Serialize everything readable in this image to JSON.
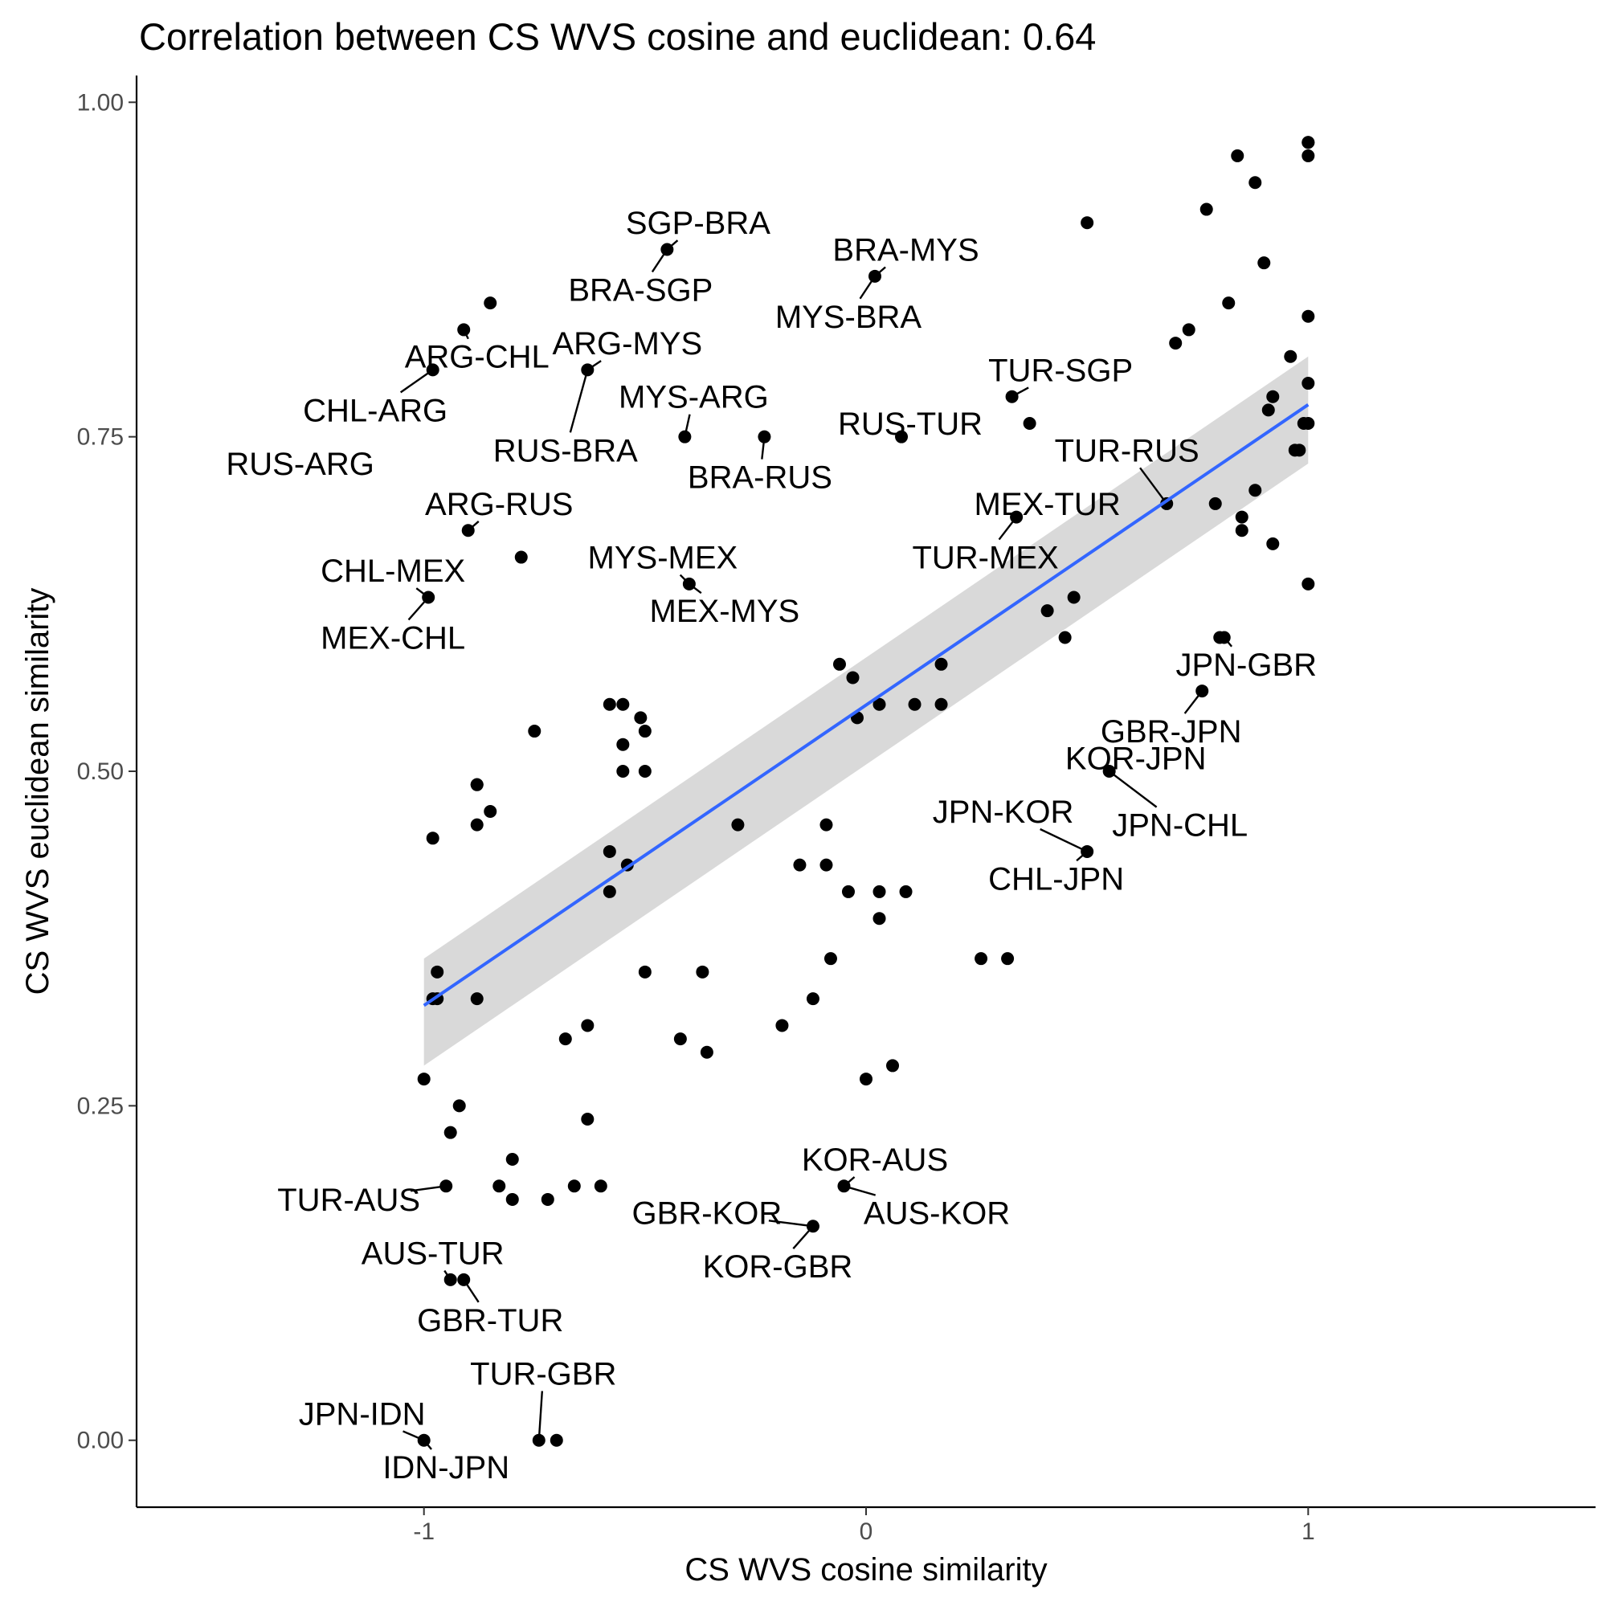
{
  "chart_data": {
    "type": "scatter",
    "title": "Correlation between CS WVS cosine and euclidean: 0.64",
    "xlabel": "CS WVS cosine similarity",
    "ylabel": "CS WVS euclidean similarity",
    "xlim": [
      -1.65,
      1.65
    ],
    "ylim": [
      -0.05,
      1.02
    ],
    "x_ticks": [
      -1,
      0,
      1
    ],
    "x_tick_labels": [
      "-1",
      "0",
      "1"
    ],
    "y_ticks": [
      0,
      0.25,
      0.5,
      0.75,
      1.0
    ],
    "y_tick_labels": [
      "0.00",
      "0.25",
      "0.50",
      "0.75",
      "1.00"
    ],
    "grid": false,
    "legend": "none",
    "colors": {
      "points": "#000000",
      "fit_line": "#3366ff",
      "confidence_band": "#bfbfbf"
    },
    "points": [
      {
        "x": -0.98,
        "y": 0.8
      },
      {
        "x": -0.91,
        "y": 0.83
      },
      {
        "x": -0.85,
        "y": 0.85
      },
      {
        "x": -0.63,
        "y": 0.8
      },
      {
        "x": -0.45,
        "y": 0.89
      },
      {
        "x": 0.02,
        "y": 0.87
      },
      {
        "x": -0.41,
        "y": 0.75
      },
      {
        "x": -0.23,
        "y": 0.75
      },
      {
        "x": 0.08,
        "y": 0.75
      },
      {
        "x": 0.33,
        "y": 0.78
      },
      {
        "x": 0.37,
        "y": 0.76
      },
      {
        "x": 0.5,
        "y": 0.91
      },
      {
        "x": -0.9,
        "y": 0.68
      },
      {
        "x": -0.78,
        "y": 0.66
      },
      {
        "x": -0.99,
        "y": 0.63
      },
      {
        "x": -0.4,
        "y": 0.64
      },
      {
        "x": 0.34,
        "y": 0.69
      },
      {
        "x": 0.84,
        "y": 0.96
      },
      {
        "x": 0.88,
        "y": 0.94
      },
      {
        "x": 0.77,
        "y": 0.92
      },
      {
        "x": 1.0,
        "y": 0.97
      },
      {
        "x": 1.0,
        "y": 0.97
      },
      {
        "x": 1.0,
        "y": 0.96
      },
      {
        "x": 0.9,
        "y": 0.88
      },
      {
        "x": 0.82,
        "y": 0.85
      },
      {
        "x": 1.0,
        "y": 0.84
      },
      {
        "x": 0.73,
        "y": 0.83
      },
      {
        "x": 0.7,
        "y": 0.82
      },
      {
        "x": 0.96,
        "y": 0.81
      },
      {
        "x": 1.0,
        "y": 0.79
      },
      {
        "x": 0.92,
        "y": 0.78
      },
      {
        "x": 0.91,
        "y": 0.77
      },
      {
        "x": 0.99,
        "y": 0.76
      },
      {
        "x": 1.0,
        "y": 0.76
      },
      {
        "x": 0.97,
        "y": 0.74
      },
      {
        "x": 0.98,
        "y": 0.74
      },
      {
        "x": 0.88,
        "y": 0.71
      },
      {
        "x": 0.68,
        "y": 0.7
      },
      {
        "x": 0.79,
        "y": 0.7
      },
      {
        "x": 0.85,
        "y": 0.69
      },
      {
        "x": 0.85,
        "y": 0.68
      },
      {
        "x": 0.92,
        "y": 0.67
      },
      {
        "x": 1.0,
        "y": 0.64
      },
      {
        "x": 0.47,
        "y": 0.63
      },
      {
        "x": 0.41,
        "y": 0.62
      },
      {
        "x": 0.45,
        "y": 0.6
      },
      {
        "x": 0.81,
        "y": 0.6
      },
      {
        "x": 0.8,
        "y": 0.6
      },
      {
        "x": 0.76,
        "y": 0.56
      },
      {
        "x": 0.55,
        "y": 0.5
      },
      {
        "x": 0.5,
        "y": 0.44
      },
      {
        "x": -0.06,
        "y": 0.58
      },
      {
        "x": -0.03,
        "y": 0.57
      },
      {
        "x": 0.17,
        "y": 0.58
      },
      {
        "x": 0.03,
        "y": 0.55
      },
      {
        "x": 0.11,
        "y": 0.55
      },
      {
        "x": 0.17,
        "y": 0.55
      },
      {
        "x": -0.02,
        "y": 0.54
      },
      {
        "x": -0.58,
        "y": 0.55
      },
      {
        "x": -0.55,
        "y": 0.55
      },
      {
        "x": -0.51,
        "y": 0.54
      },
      {
        "x": -0.5,
        "y": 0.53
      },
      {
        "x": -0.75,
        "y": 0.53
      },
      {
        "x": -0.55,
        "y": 0.52
      },
      {
        "x": -0.55,
        "y": 0.5
      },
      {
        "x": -0.5,
        "y": 0.5
      },
      {
        "x": -0.88,
        "y": 0.49
      },
      {
        "x": -0.88,
        "y": 0.49
      },
      {
        "x": -0.85,
        "y": 0.47
      },
      {
        "x": -0.88,
        "y": 0.46
      },
      {
        "x": -0.98,
        "y": 0.45
      },
      {
        "x": -0.29,
        "y": 0.46
      },
      {
        "x": -0.09,
        "y": 0.46
      },
      {
        "x": -0.58,
        "y": 0.44
      },
      {
        "x": -0.54,
        "y": 0.43
      },
      {
        "x": -0.09,
        "y": 0.43
      },
      {
        "x": -0.15,
        "y": 0.43
      },
      {
        "x": -0.58,
        "y": 0.41
      },
      {
        "x": -0.04,
        "y": 0.41
      },
      {
        "x": 0.03,
        "y": 0.41
      },
      {
        "x": 0.09,
        "y": 0.41
      },
      {
        "x": 0.03,
        "y": 0.39
      },
      {
        "x": -0.08,
        "y": 0.36
      },
      {
        "x": 0.26,
        "y": 0.36
      },
      {
        "x": 0.32,
        "y": 0.36
      },
      {
        "x": -0.5,
        "y": 0.35
      },
      {
        "x": -0.37,
        "y": 0.35
      },
      {
        "x": -0.97,
        "y": 0.35
      },
      {
        "x": -0.98,
        "y": 0.33
      },
      {
        "x": -0.88,
        "y": 0.33
      },
      {
        "x": -0.97,
        "y": 0.33
      },
      {
        "x": -0.12,
        "y": 0.33
      },
      {
        "x": -0.63,
        "y": 0.31
      },
      {
        "x": -0.19,
        "y": 0.31
      },
      {
        "x": -0.68,
        "y": 0.3
      },
      {
        "x": -0.42,
        "y": 0.3
      },
      {
        "x": -0.36,
        "y": 0.29
      },
      {
        "x": 0.06,
        "y": 0.28
      },
      {
        "x": 0.0,
        "y": 0.27
      },
      {
        "x": -1.0,
        "y": 0.27
      },
      {
        "x": -0.92,
        "y": 0.25
      },
      {
        "x": -0.63,
        "y": 0.24
      },
      {
        "x": -0.94,
        "y": 0.23
      },
      {
        "x": -0.8,
        "y": 0.21
      },
      {
        "x": -0.95,
        "y": 0.19
      },
      {
        "x": -0.83,
        "y": 0.19
      },
      {
        "x": -0.8,
        "y": 0.18
      },
      {
        "x": -0.66,
        "y": 0.19
      },
      {
        "x": -0.6,
        "y": 0.19
      },
      {
        "x": -0.72,
        "y": 0.18
      },
      {
        "x": -0.05,
        "y": 0.19
      },
      {
        "x": -0.12,
        "y": 0.16
      },
      {
        "x": -0.94,
        "y": 0.12
      },
      {
        "x": -0.91,
        "y": 0.12
      },
      {
        "x": -1.0,
        "y": 0.0
      },
      {
        "x": -0.74,
        "y": 0.0
      },
      {
        "x": -0.7,
        "y": 0.0
      }
    ],
    "fit_line": {
      "x": [
        -1.0,
        1.0
      ],
      "y": [
        0.325,
        0.774
      ]
    },
    "confidence_band": {
      "x": [
        -1.0,
        1.0
      ],
      "lower": [
        0.28,
        0.73
      ],
      "upper": [
        0.36,
        0.81
      ]
    },
    "labels": [
      {
        "text": "SGP-BRA",
        "x": -0.38,
        "y": 0.91
      },
      {
        "text": "BRA-SGP",
        "x": -0.51,
        "y": 0.86
      },
      {
        "text": "BRA-MYS",
        "x": 0.09,
        "y": 0.89
      },
      {
        "text": "MYS-BRA",
        "x": -0.04,
        "y": 0.84
      },
      {
        "text": "ARG-CHL",
        "x": -0.88,
        "y": 0.81
      },
      {
        "text": "CHL-ARG",
        "x": -1.11,
        "y": 0.77
      },
      {
        "text": "ARG-MYS",
        "x": -0.54,
        "y": 0.82
      },
      {
        "text": "MYS-ARG",
        "x": -0.39,
        "y": 0.78
      },
      {
        "text": "RUS-BRA",
        "x": -0.68,
        "y": 0.74
      },
      {
        "text": "BRA-RUS",
        "x": -0.24,
        "y": 0.72
      },
      {
        "text": "RUS-ARG",
        "x": -1.28,
        "y": 0.73
      },
      {
        "text": "ARG-RUS",
        "x": -0.83,
        "y": 0.7
      },
      {
        "text": "TUR-SGP",
        "x": 0.44,
        "y": 0.8
      },
      {
        "text": "RUS-TUR",
        "x": 0.1,
        "y": 0.76
      },
      {
        "text": "TUR-RUS",
        "x": 0.59,
        "y": 0.74
      },
      {
        "text": "MEX-TUR",
        "x": 0.41,
        "y": 0.7
      },
      {
        "text": "TUR-MEX",
        "x": 0.27,
        "y": 0.66
      },
      {
        "text": "CHL-MEX",
        "x": -1.07,
        "y": 0.65
      },
      {
        "text": "MEX-CHL",
        "x": -1.07,
        "y": 0.6
      },
      {
        "text": "MYS-MEX",
        "x": -0.46,
        "y": 0.66
      },
      {
        "text": "MEX-MYS",
        "x": -0.32,
        "y": 0.62
      },
      {
        "text": "JPN-GBR",
        "x": 0.86,
        "y": 0.58
      },
      {
        "text": "GBR-JPN",
        "x": 0.69,
        "y": 0.53
      },
      {
        "text": "KOR-JPN",
        "x": 0.61,
        "y": 0.51
      },
      {
        "text": "JPN-KOR",
        "x": 0.31,
        "y": 0.47
      },
      {
        "text": "JPN-CHL",
        "x": 0.71,
        "y": 0.46
      },
      {
        "text": "CHL-JPN",
        "x": 0.43,
        "y": 0.42
      },
      {
        "text": "KOR-AUS",
        "x": 0.02,
        "y": 0.21
      },
      {
        "text": "GBR-KOR",
        "x": -0.36,
        "y": 0.17
      },
      {
        "text": "AUS-KOR",
        "x": 0.16,
        "y": 0.17
      },
      {
        "text": "KOR-GBR",
        "x": -0.2,
        "y": 0.13
      },
      {
        "text": "TUR-AUS",
        "x": -1.17,
        "y": 0.18
      },
      {
        "text": "AUS-TUR",
        "x": -0.98,
        "y": 0.14
      },
      {
        "text": "GBR-TUR",
        "x": -0.85,
        "y": 0.09
      },
      {
        "text": "TUR-GBR",
        "x": -0.73,
        "y": 0.05
      },
      {
        "text": "JPN-IDN",
        "x": -1.14,
        "y": 0.02
      },
      {
        "text": "IDN-JPN",
        "x": -0.95,
        "y": -0.02
      }
    ]
  }
}
